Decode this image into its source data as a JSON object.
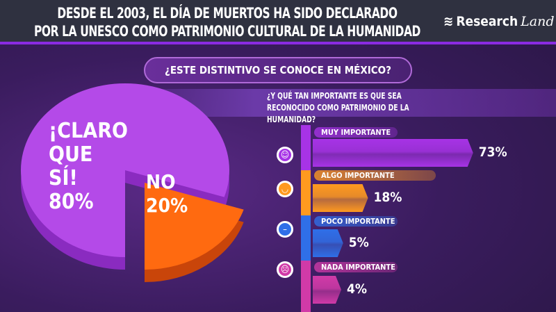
{
  "header": {
    "title_line1": "DESDE EL 2003, EL DÍA DE MUERTOS HA SIDO DECLARADO",
    "title_line2": "POR LA UNESCO COMO PATRIMONIO CULTURAL DE LA HUMANIDAD",
    "logo_main": "Research",
    "logo_script": "Land"
  },
  "chart_data": [
    {
      "type": "pie",
      "title": "¿ESTE DISTINTIVO SE CONOCE EN MÉXICO?",
      "categories": [
        "¡CLARO QUE SÍ!",
        "NO"
      ],
      "values": [
        80,
        20
      ],
      "value_labels": [
        "80%",
        "20%"
      ],
      "colors": [
        "#b44ae8",
        "#ff6a10"
      ]
    },
    {
      "type": "bar",
      "orientation": "horizontal",
      "title": "¿Y QUÉ TAN IMPORTANTE ES QUE SEA RECONOCIDO COMO PATRIMONIO DE LA HUMANIDAD?",
      "categories": [
        "MUY IMPORTANTE",
        "ALGO IMPORTANTE",
        "POCO IMPORTANTE",
        "NADA IMPORTANTE"
      ],
      "values": [
        73,
        18,
        5,
        4
      ],
      "value_labels": [
        "73%",
        "18%",
        "5%",
        "4%"
      ],
      "colors": [
        "#a733e6",
        "#ff9a1f",
        "#2f6fe8",
        "#d13aa8"
      ],
      "icons": [
        "very-happy-face-icon",
        "smile-face-icon",
        "neutral-face-icon",
        "sad-face-icon"
      ]
    }
  ]
}
